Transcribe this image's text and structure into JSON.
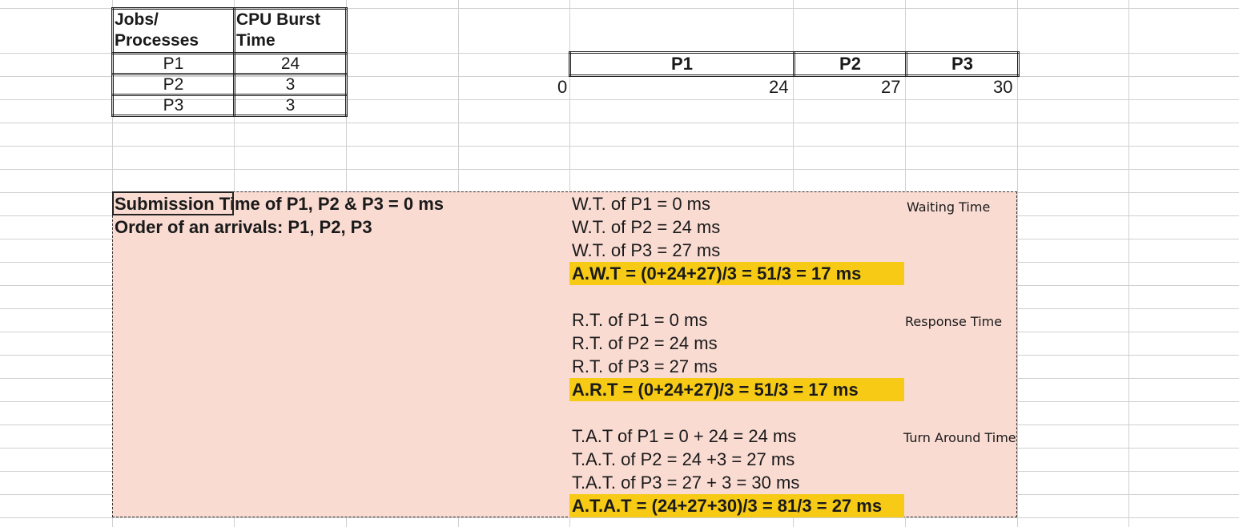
{
  "jobs_table": {
    "header_col1": "Jobs/ Processes",
    "header_col2": "CPU Burst Time",
    "rows": [
      {
        "process": "P1",
        "burst": "24"
      },
      {
        "process": "P2",
        "burst": "3"
      },
      {
        "process": "P3",
        "burst": "3"
      }
    ]
  },
  "gantt": {
    "blocks": [
      "P1",
      "P2",
      "P3"
    ],
    "ticks": [
      "0",
      "24",
      "27",
      "30"
    ]
  },
  "notes": {
    "submission": "Submission Time of P1, P2 & P3 = 0 ms",
    "order": "Order of an arrivals: P1, P2, P3"
  },
  "waiting": {
    "label": "Waiting Time",
    "lines": [
      "W.T. of P1 = 0 ms",
      "W.T. of P2 = 24 ms",
      "W.T. of P3 = 27 ms"
    ],
    "average": "A.W.T = (0+24+27)/3 = 51/3 = 17 ms"
  },
  "response": {
    "label": "Response Time",
    "lines": [
      "R.T. of P1 = 0 ms",
      "R.T. of P2 = 24 ms",
      "R.T. of P3 = 27 ms"
    ],
    "average": "A.R.T = (0+24+27)/3 = 51/3 = 17 ms"
  },
  "turnaround": {
    "label": "Turn Around Time",
    "lines": [
      "T.A.T of P1 = 0 + 24 = 24 ms",
      "T.A.T. of P2 = 24 +3  = 27 ms",
      "T.A.T. of P3 = 27 + 3 = 30 ms"
    ],
    "average": "A.T.A.T = (24+27+30)/3 = 81/3 = 27 ms"
  },
  "colors": {
    "highlight": "#f7cb15",
    "fill": "#f9dbd2"
  }
}
